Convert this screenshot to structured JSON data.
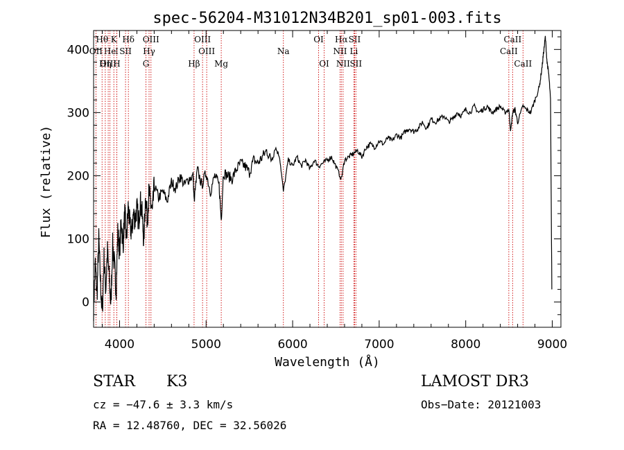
{
  "chart_data": {
    "type": "line",
    "title": "spec-56204-M31012N34B201_sp01-003.fits",
    "xlabel": "Wavelength (Å)",
    "ylabel": "Flux (relative)",
    "xlim": [
      3700,
      9100
    ],
    "ylim": [
      -40,
      430
    ],
    "x_ticks": [
      4000,
      5000,
      6000,
      7000,
      8000,
      9000
    ],
    "y_ticks": [
      0,
      100,
      200,
      300,
      400
    ],
    "y_tick_labels": [
      "0",
      "100",
      "200",
      "300",
      "400"
    ],
    "x_tick_labels": [
      "4000",
      "5000",
      "6000",
      "7000",
      "8000",
      "9000"
    ],
    "grid": false,
    "series": [
      {
        "name": "flux",
        "x": [
          3700,
          3720,
          3740,
          3760,
          3780,
          3800,
          3820,
          3840,
          3860,
          3880,
          3900,
          3920,
          3940,
          3960,
          3980,
          4000,
          4020,
          4040,
          4060,
          4080,
          4100,
          4120,
          4140,
          4160,
          4180,
          4200,
          4220,
          4240,
          4260,
          4280,
          4300,
          4320,
          4340,
          4360,
          4380,
          4400,
          4450,
          4500,
          4550,
          4600,
          4650,
          4700,
          4750,
          4800,
          4850,
          4861,
          4900,
          4950,
          5000,
          5050,
          5100,
          5150,
          5175,
          5200,
          5250,
          5300,
          5350,
          5400,
          5450,
          5500,
          5550,
          5600,
          5650,
          5700,
          5750,
          5800,
          5850,
          5893,
          5950,
          6000,
          6050,
          6100,
          6150,
          6200,
          6250,
          6300,
          6350,
          6400,
          6450,
          6500,
          6563,
          6600,
          6650,
          6700,
          6750,
          6800,
          6850,
          6900,
          6950,
          7000,
          7050,
          7100,
          7150,
          7200,
          7250,
          7300,
          7350,
          7400,
          7450,
          7500,
          7550,
          7600,
          7650,
          7700,
          7750,
          7800,
          7850,
          7900,
          7950,
          8000,
          8050,
          8100,
          8150,
          8200,
          8250,
          8300,
          8350,
          8400,
          8450,
          8498,
          8520,
          8542,
          8570,
          8600,
          8662,
          8700,
          8750,
          8800,
          8850,
          8880,
          8900,
          8920,
          8940,
          8960,
          8980,
          8995
        ],
        "y": [
          -10,
          60,
          10,
          100,
          30,
          -20,
          70,
          20,
          80,
          40,
          -5,
          90,
          60,
          20,
          110,
          80,
          130,
          90,
          140,
          100,
          150,
          120,
          110,
          140,
          130,
          150,
          125,
          160,
          140,
          95,
          170,
          130,
          175,
          155,
          140,
          185,
          165,
          175,
          160,
          190,
          180,
          200,
          185,
          195,
          200,
          160,
          210,
          185,
          205,
          175,
          200,
          185,
          130,
          205,
          200,
          195,
          210,
          220,
          215,
          205,
          225,
          220,
          230,
          240,
          225,
          245,
          230,
          175,
          225,
          215,
          230,
          215,
          225,
          210,
          225,
          215,
          220,
          225,
          230,
          215,
          195,
          225,
          230,
          235,
          240,
          230,
          245,
          250,
          245,
          255,
          250,
          260,
          255,
          265,
          260,
          270,
          275,
          270,
          275,
          285,
          275,
          290,
          285,
          290,
          295,
          285,
          290,
          300,
          295,
          305,
          300,
          310,
          300,
          305,
          310,
          300,
          305,
          310,
          300,
          305,
          270,
          300,
          305,
          285,
          310,
          305,
          300,
          320,
          340,
          370,
          395,
          420,
          380,
          360,
          320,
          20
        ]
      }
    ],
    "lines": [
      {
        "name": "Hθ",
        "x": 3798,
        "row": 0
      },
      {
        "name": "OII",
        "x": 3727,
        "row": 1
      },
      {
        "name": "OIII",
        "x": 3869,
        "row": 2
      },
      {
        "name": "He",
        "x": 3889,
        "row": 1
      },
      {
        "name": "K",
        "x": 3934,
        "row": 0
      },
      {
        "name": "I",
        "x": 3968,
        "row": 1
      },
      {
        "name": "Hη",
        "x": 3835,
        "row": 2
      },
      {
        "name": "H",
        "x": 3968,
        "row": 2
      },
      {
        "name": "SII",
        "x": 4069,
        "row": 1
      },
      {
        "name": "Hδ",
        "x": 4102,
        "row": 0
      },
      {
        "name": "OIII",
        "x": 4363,
        "row": 0
      },
      {
        "name": "Hγ",
        "x": 4341,
        "row": 1
      },
      {
        "name": "G",
        "x": 4305,
        "row": 2
      },
      {
        "name": "Hβ",
        "x": 4861,
        "row": 2
      },
      {
        "name": "OIII",
        "x": 4959,
        "row": 0
      },
      {
        "name": "OIII",
        "x": 5007,
        "row": 1
      },
      {
        "name": "Mg",
        "x": 5175,
        "row": 2
      },
      {
        "name": "Na",
        "x": 5893,
        "row": 1
      },
      {
        "name": "OI",
        "x": 6300,
        "row": 0
      },
      {
        "name": "OI",
        "x": 6364,
        "row": 2
      },
      {
        "name": "Hα",
        "x": 6563,
        "row": 0
      },
      {
        "name": "SII",
        "x": 6716,
        "row": 0
      },
      {
        "name": "NII",
        "x": 6548,
        "row": 1
      },
      {
        "name": "Li",
        "x": 6708,
        "row": 1
      },
      {
        "name": "NII",
        "x": 6583,
        "row": 2
      },
      {
        "name": "SII",
        "x": 6731,
        "row": 2
      },
      {
        "name": "CaII",
        "x": 8542,
        "row": 0
      },
      {
        "name": "CaII",
        "x": 8498,
        "row": 1
      },
      {
        "name": "CaII",
        "x": 8662,
        "row": 2
      }
    ],
    "colors": {
      "spectrum": "#000000",
      "line_marker": "#cc0000",
      "axes": "#000000"
    }
  },
  "info": {
    "star_type": "STAR",
    "spectral_class": "K3",
    "survey": "LAMOST DR3",
    "cz": "cz = −47.6 ± 3.3 km/s",
    "obs_date": "Obs−Date: 20121003",
    "coords": "RA =  12.48760, DEC =  32.56026"
  }
}
